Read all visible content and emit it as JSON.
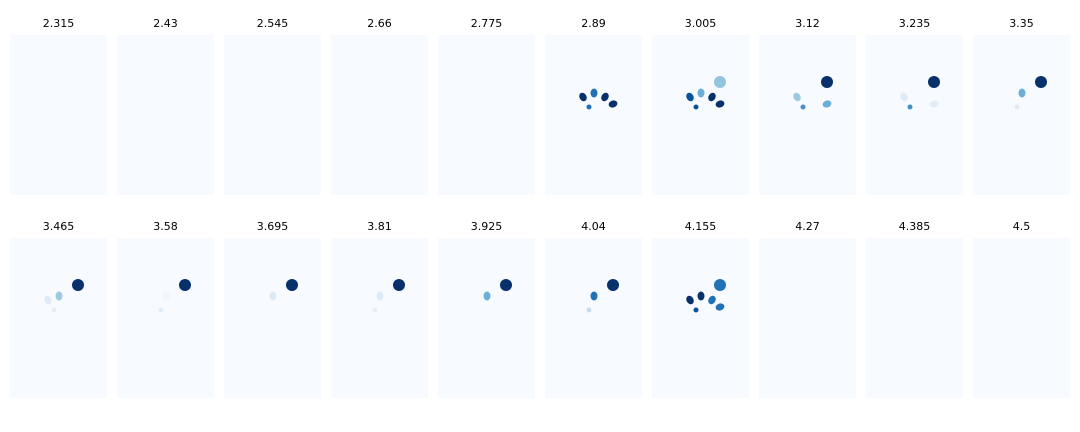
{
  "chart_data": {
    "type": "heatmap",
    "colormap": "Blues",
    "background_color": "#f7fbff",
    "titles": [
      "2.315",
      "2.43",
      "2.545",
      "2.66",
      "2.775",
      "2.89",
      "3.005",
      "3.12",
      "3.235",
      "3.35",
      "3.465",
      "3.58",
      "3.695",
      "3.81",
      "3.925",
      "4.04",
      "4.155",
      "4.27",
      "4.385",
      "4.5"
    ],
    "panels": [
      {
        "title": "2.315",
        "blobs": []
      },
      {
        "title": "2.43",
        "blobs": []
      },
      {
        "title": "2.545",
        "blobs": []
      },
      {
        "title": "2.66",
        "blobs": []
      },
      {
        "title": "2.775",
        "blobs": []
      },
      {
        "title": "2.89",
        "blobs": [
          {
            "x": 38,
            "y": 62,
            "rx": 3.5,
            "ry": 4.5,
            "rot": -30,
            "color": "#08306b"
          },
          {
            "x": 49,
            "y": 58,
            "rx": 3.5,
            "ry": 4.5,
            "rot": 0,
            "color": "#2171b5"
          },
          {
            "x": 60,
            "y": 62,
            "rx": 3.5,
            "ry": 4.5,
            "rot": 30,
            "color": "#08306b"
          },
          {
            "x": 44,
            "y": 72,
            "rx": 2.5,
            "ry": 2.5,
            "rot": 0,
            "color": "#2171b5"
          },
          {
            "x": 68,
            "y": 69,
            "rx": 4.5,
            "ry": 3.5,
            "rot": -20,
            "color": "#08306b"
          }
        ]
      },
      {
        "title": "3.005",
        "blobs": [
          {
            "x": 38,
            "y": 62,
            "rx": 3.5,
            "ry": 4.5,
            "rot": -30,
            "color": "#08519c"
          },
          {
            "x": 49,
            "y": 58,
            "rx": 3.5,
            "ry": 4.5,
            "rot": 0,
            "color": "#6baed6"
          },
          {
            "x": 60,
            "y": 62,
            "rx": 3.5,
            "ry": 4.5,
            "rot": 30,
            "color": "#08306b"
          },
          {
            "x": 44,
            "y": 72,
            "rx": 2.5,
            "ry": 2.5,
            "rot": 0,
            "color": "#08519c"
          },
          {
            "x": 68,
            "y": 69,
            "rx": 4.5,
            "ry": 3.5,
            "rot": -20,
            "color": "#08306b"
          },
          {
            "x": 68,
            "y": 47,
            "rx": 6,
            "ry": 6,
            "rot": 0,
            "color": "#93c4de"
          }
        ]
      },
      {
        "title": "3.12",
        "blobs": [
          {
            "x": 38,
            "y": 62,
            "rx": 3.5,
            "ry": 4.5,
            "rot": -30,
            "color": "#9ecae1"
          },
          {
            "x": 44,
            "y": 72,
            "rx": 2.5,
            "ry": 2.5,
            "rot": 0,
            "color": "#4292c6"
          },
          {
            "x": 68,
            "y": 69,
            "rx": 4.5,
            "ry": 3.5,
            "rot": -20,
            "color": "#6baed6"
          },
          {
            "x": 68,
            "y": 47,
            "rx": 6,
            "ry": 6,
            "rot": 0,
            "color": "#08306b"
          }
        ]
      },
      {
        "title": "3.235",
        "blobs": [
          {
            "x": 38,
            "y": 62,
            "rx": 3.5,
            "ry": 4.5,
            "rot": -30,
            "color": "#deebf7"
          },
          {
            "x": 44,
            "y": 72,
            "rx": 2.5,
            "ry": 2.5,
            "rot": 0,
            "color": "#4292c6"
          },
          {
            "x": 68,
            "y": 69,
            "rx": 4.5,
            "ry": 3.5,
            "rot": -20,
            "color": "#e1edf8"
          },
          {
            "x": 68,
            "y": 47,
            "rx": 6,
            "ry": 6,
            "rot": 0,
            "color": "#08306b"
          }
        ]
      },
      {
        "title": "3.35",
        "blobs": [
          {
            "x": 49,
            "y": 58,
            "rx": 3.5,
            "ry": 4.5,
            "rot": 0,
            "color": "#6baed6"
          },
          {
            "x": 44,
            "y": 72,
            "rx": 2.5,
            "ry": 2.5,
            "rot": 0,
            "color": "#deebf7"
          },
          {
            "x": 68,
            "y": 47,
            "rx": 6,
            "ry": 6,
            "rot": 0,
            "color": "#08306b"
          }
        ]
      },
      {
        "title": "3.465",
        "blobs": [
          {
            "x": 38,
            "y": 62,
            "rx": 3.5,
            "ry": 4.5,
            "rot": -30,
            "color": "#deebf7"
          },
          {
            "x": 49,
            "y": 58,
            "rx": 3.5,
            "ry": 4.5,
            "rot": 0,
            "color": "#9ecae1"
          },
          {
            "x": 44,
            "y": 72,
            "rx": 2.5,
            "ry": 2.5,
            "rot": 0,
            "color": "#e1edf8"
          },
          {
            "x": 68,
            "y": 47,
            "rx": 6,
            "ry": 6,
            "rot": 0,
            "color": "#08306b"
          }
        ]
      },
      {
        "title": "3.58",
        "blobs": [
          {
            "x": 49,
            "y": 58,
            "rx": 3.5,
            "ry": 4.5,
            "rot": 0,
            "color": "#eef5fc"
          },
          {
            "x": 44,
            "y": 72,
            "rx": 2.5,
            "ry": 2.5,
            "rot": 0,
            "color": "#e1edf8"
          },
          {
            "x": 68,
            "y": 47,
            "rx": 6,
            "ry": 6,
            "rot": 0,
            "color": "#08306b"
          }
        ]
      },
      {
        "title": "3.695",
        "blobs": [
          {
            "x": 49,
            "y": 58,
            "rx": 3.5,
            "ry": 4.5,
            "rot": 0,
            "color": "#deebf7"
          },
          {
            "x": 68,
            "y": 47,
            "rx": 6,
            "ry": 6,
            "rot": 0,
            "color": "#08306b"
          }
        ]
      },
      {
        "title": "3.81",
        "blobs": [
          {
            "x": 49,
            "y": 58,
            "rx": 3.5,
            "ry": 4.5,
            "rot": 0,
            "color": "#deebf7"
          },
          {
            "x": 44,
            "y": 72,
            "rx": 2.5,
            "ry": 2.5,
            "rot": 0,
            "color": "#e7f0f9"
          },
          {
            "x": 68,
            "y": 47,
            "rx": 6,
            "ry": 6,
            "rot": 0,
            "color": "#08306b"
          }
        ]
      },
      {
        "title": "3.925",
        "blobs": [
          {
            "x": 49,
            "y": 58,
            "rx": 3.5,
            "ry": 4.5,
            "rot": 0,
            "color": "#6baed6"
          },
          {
            "x": 68,
            "y": 47,
            "rx": 6,
            "ry": 6,
            "rot": 0,
            "color": "#08306b"
          }
        ]
      },
      {
        "title": "4.04",
        "blobs": [
          {
            "x": 49,
            "y": 58,
            "rx": 3.5,
            "ry": 4.5,
            "rot": 0,
            "color": "#2171b5"
          },
          {
            "x": 44,
            "y": 72,
            "rx": 2.5,
            "ry": 2.5,
            "rot": 0,
            "color": "#c6dbef"
          },
          {
            "x": 68,
            "y": 47,
            "rx": 6,
            "ry": 6,
            "rot": 0,
            "color": "#08306b"
          }
        ]
      },
      {
        "title": "4.155",
        "blobs": [
          {
            "x": 38,
            "y": 62,
            "rx": 3.5,
            "ry": 4.5,
            "rot": -30,
            "color": "#08306b"
          },
          {
            "x": 49,
            "y": 58,
            "rx": 3.5,
            "ry": 4.5,
            "rot": 0,
            "color": "#08306b"
          },
          {
            "x": 60,
            "y": 62,
            "rx": 3.5,
            "ry": 4.5,
            "rot": 30,
            "color": "#2171b5"
          },
          {
            "x": 44,
            "y": 72,
            "rx": 2.5,
            "ry": 2.5,
            "rot": 0,
            "color": "#08519c"
          },
          {
            "x": 68,
            "y": 69,
            "rx": 4.5,
            "ry": 3.5,
            "rot": -20,
            "color": "#2171b5"
          },
          {
            "x": 68,
            "y": 47,
            "rx": 6,
            "ry": 6,
            "rot": 0,
            "color": "#2171b5"
          }
        ]
      },
      {
        "title": "4.27",
        "blobs": []
      },
      {
        "title": "4.385",
        "blobs": []
      },
      {
        "title": "4.5",
        "blobs": []
      }
    ]
  }
}
